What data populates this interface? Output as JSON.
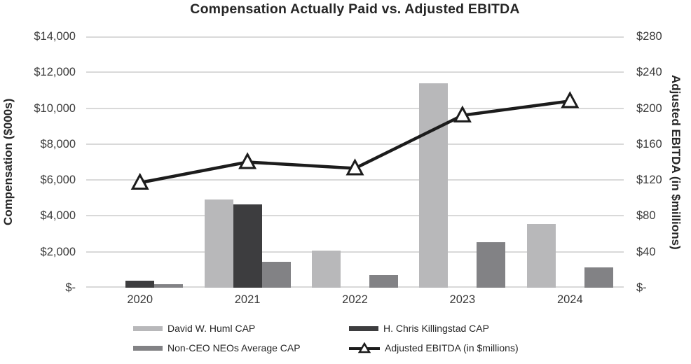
{
  "title": "Compensation Actually Paid vs. Adjusted EBITDA",
  "left_axis": {
    "title": "Compensation ($000s)",
    "tick_labels": [
      "$14,000",
      "$12,000",
      "$10,000",
      "$8,000",
      "$6,000",
      "$4,000",
      "$2,000",
      "$-"
    ],
    "min": 0,
    "max": 14000,
    "step": 2000
  },
  "right_axis": {
    "title": "Adjusted EBITDA (in $millions)",
    "tick_labels": [
      "$280",
      "$240",
      "$200",
      "$160",
      "$120",
      "$80",
      "$40",
      "$-"
    ],
    "min": 0,
    "max": 280,
    "step": 40
  },
  "chart_data": {
    "type": "combo (grouped bar + line, dual axis)",
    "categories": [
      "2020",
      "2021",
      "2022",
      "2023",
      "2024"
    ],
    "series": [
      {
        "type": "bar",
        "axis": "left",
        "name": "David W. Huml CAP",
        "color": "#b8b8ba",
        "values": [
          0,
          4900,
          2050,
          11400,
          3550
        ]
      },
      {
        "type": "bar",
        "axis": "left",
        "name": "H. Chris Killingstad CAP",
        "color": "#3d3d3f",
        "values": [
          400,
          4650,
          0,
          0,
          0
        ]
      },
      {
        "type": "bar",
        "axis": "left",
        "name": "Non-CEO NEOs Average CAP",
        "color": "#828285",
        "values": [
          200,
          1450,
          700,
          2550,
          1150
        ]
      },
      {
        "type": "line",
        "axis": "right",
        "name": "Adjusted EBITDA (in $millions)",
        "color": "#1c1c1c",
        "marker": "open-triangle",
        "values": [
          117,
          140,
          133,
          192,
          208
        ]
      }
    ],
    "left_ylim": [
      0,
      14000
    ],
    "right_ylim": [
      0,
      280
    ],
    "grid": true,
    "legend_position": "bottom"
  },
  "colors": {
    "gridline": "#d9d9d9",
    "axis_text": "#3a3a3a",
    "title_text": "#262626",
    "background": "#ffffff"
  }
}
